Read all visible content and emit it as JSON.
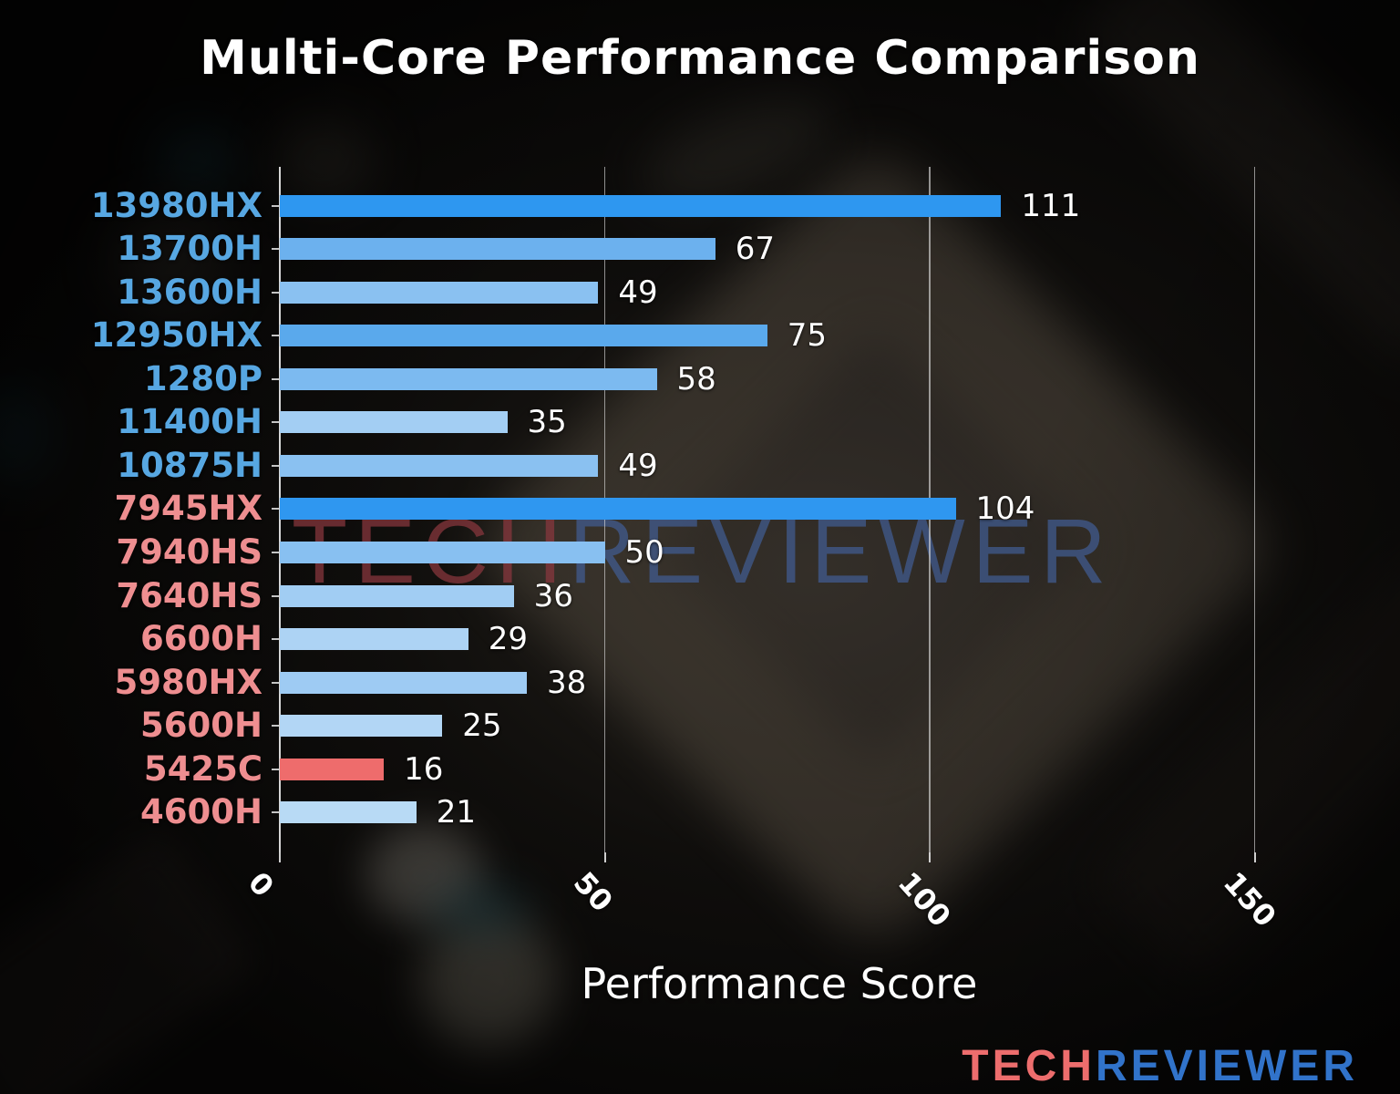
{
  "page": {
    "title": "Multi-Core Performance Comparison"
  },
  "watermark": {
    "tech": "TECH",
    "reviewer": "REVIEWER"
  },
  "brand_logo": {
    "tech": "TECH",
    "reviewer": "REVIEWER",
    "tech_color": "#ed6d6d",
    "reviewer_color": "#3173ca"
  },
  "colors": {
    "intel_label": "#57a7e2",
    "amd_label": "#ee8e90",
    "highlight_bar_red": "#ee6c6c",
    "strong_bar_blue": "#2e97f0",
    "text": "#ffffff",
    "gridline": "#e1e1e1"
  },
  "chart_data": {
    "type": "bar",
    "orientation": "horizontal",
    "title": "Multi-Core Performance Comparison",
    "xlabel": "Performance Score",
    "ylabel": "",
    "xlim": [
      0,
      166
    ],
    "xticks": [
      0,
      50,
      100,
      150
    ],
    "grid": true,
    "legend": false,
    "categories": [
      "13980HX",
      "13700H",
      "13600H",
      "12950HX",
      "1280P",
      "11400H",
      "10875H",
      "7945HX",
      "7940HS",
      "7640HS",
      "6600H",
      "5980HX",
      "5600H",
      "5425C",
      "4600H"
    ],
    "values": [
      111,
      67,
      49,
      75,
      58,
      35,
      49,
      104,
      50,
      36,
      29,
      38,
      25,
      16,
      21
    ],
    "bars": [
      {
        "label": "13980HX",
        "value": 111,
        "bar_color": "#2e97f0",
        "label_color": "#57a7e2"
      },
      {
        "label": "13700H",
        "value": 67,
        "bar_color": "#6cb1ee",
        "label_color": "#57a7e2"
      },
      {
        "label": "13600H",
        "value": 49,
        "bar_color": "#8ac1f1",
        "label_color": "#57a7e2"
      },
      {
        "label": "12950HX",
        "value": 75,
        "bar_color": "#5aa9ec",
        "label_color": "#57a7e2"
      },
      {
        "label": "1280P",
        "value": 58,
        "bar_color": "#7cbaf0",
        "label_color": "#57a7e2"
      },
      {
        "label": "11400H",
        "value": 35,
        "bar_color": "#a3cef3",
        "label_color": "#57a7e2"
      },
      {
        "label": "10875H",
        "value": 49,
        "bar_color": "#8ac1f1",
        "label_color": "#57a7e2"
      },
      {
        "label": "7945HX",
        "value": 104,
        "bar_color": "#2f97f0",
        "label_color": "#ee8e90"
      },
      {
        "label": "7940HS",
        "value": 50,
        "bar_color": "#88c0f1",
        "label_color": "#ee8e90"
      },
      {
        "label": "7640HS",
        "value": 36,
        "bar_color": "#a1cdf3",
        "label_color": "#ee8e90"
      },
      {
        "label": "6600H",
        "value": 29,
        "bar_color": "#add3f4",
        "label_color": "#ee8e90"
      },
      {
        "label": "5980HX",
        "value": 38,
        "bar_color": "#9ecbf3",
        "label_color": "#ee8e90"
      },
      {
        "label": "5600H",
        "value": 25,
        "bar_color": "#b2d6f5",
        "label_color": "#ee8e90"
      },
      {
        "label": "5425C",
        "value": 16,
        "bar_color": "#ee6c6c",
        "label_color": "#ee8e90"
      },
      {
        "label": "4600H",
        "value": 21,
        "bar_color": "#b8daf5",
        "label_color": "#ee8e90"
      }
    ]
  }
}
